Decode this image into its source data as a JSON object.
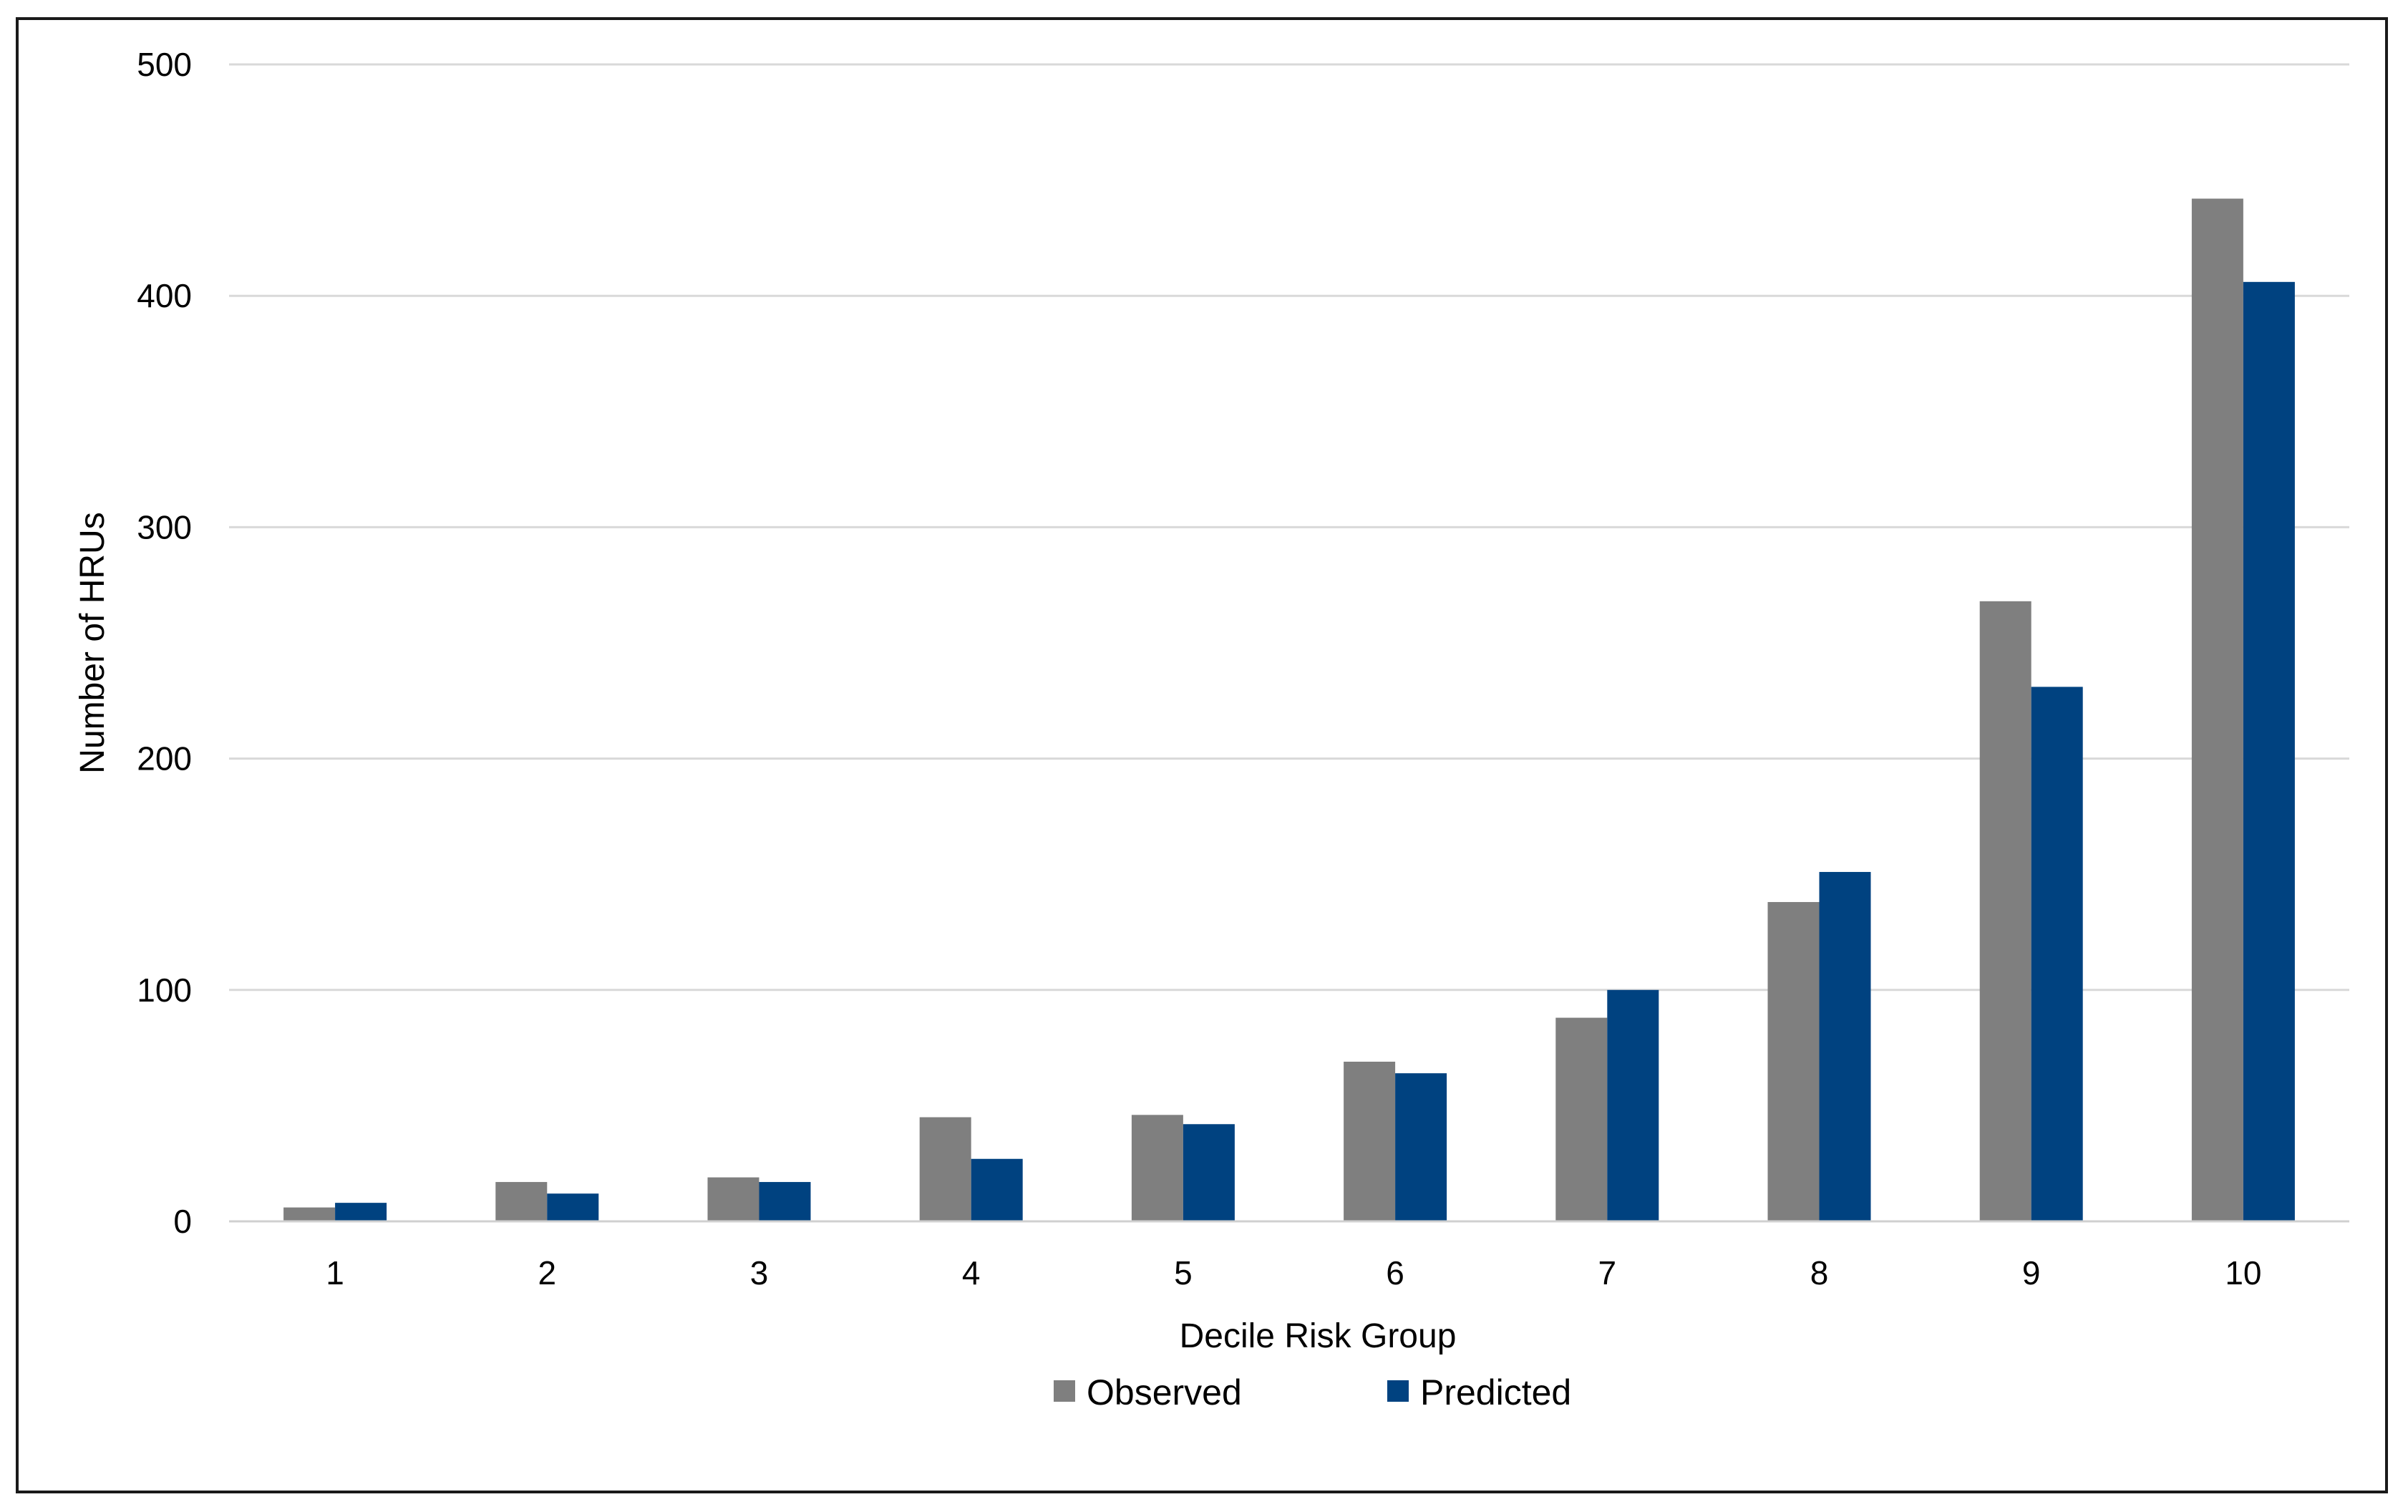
{
  "chart_data": {
    "type": "bar",
    "title": "",
    "xlabel": "Decile Risk Group",
    "ylabel": "Number of HRUs",
    "categories": [
      "1",
      "2",
      "3",
      "4",
      "5",
      "6",
      "7",
      "8",
      "9",
      "10"
    ],
    "series": [
      {
        "name": "Observed",
        "color": "#7f7f7f",
        "values": [
          6,
          17,
          19,
          45,
          46,
          69,
          88,
          138,
          268,
          442
        ]
      },
      {
        "name": "Predicted",
        "color": "#004280",
        "values": [
          8,
          12,
          17,
          27,
          42,
          64,
          100,
          151,
          231,
          406
        ]
      }
    ],
    "ylim": [
      0,
      500
    ],
    "yticks": [
      "0",
      "100",
      "200",
      "300",
      "400",
      "500"
    ],
    "grid": true,
    "legend": "bottom-center"
  }
}
